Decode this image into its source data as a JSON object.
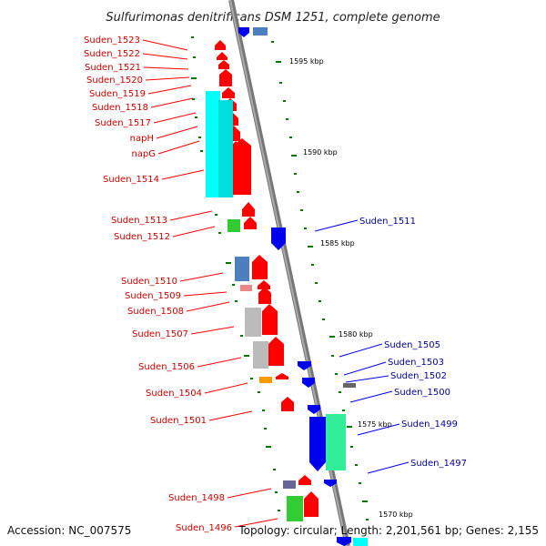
{
  "title": "Sulfurimonas denitrificans DSM 1251, complete genome",
  "footer": {
    "accession": "Accession: NC_007575",
    "summary": "Topology: circular; Length: 2,201,561 bp; Genes: 2,155"
  },
  "colors": {
    "backbone": "#888888",
    "forward": "#ff0000",
    "reverse": "#0000ee",
    "tick": "#007700",
    "label_forward": "#cc0000",
    "label_reverse": "#000099",
    "cds_cyan": "#00ffff",
    "cds_green": "#33cc33",
    "cds_steel": "#4d7fbf",
    "cds_pink": "#ee8888",
    "cds_grey": "#bbbbbb",
    "cds_orange": "#ff9900",
    "cds_purple": "#666699",
    "cds_mint": "#33ee99"
  },
  "kbp_markers": [
    "1595 kbp",
    "1590 kbp",
    "1585 kbp",
    "1580 kbp",
    "1575 kbp",
    "1570 kbp"
  ],
  "left_labels": [
    "Suden_1523",
    "Suden_1522",
    "Suden_1521",
    "Suden_1520",
    "Suden_1519",
    "Suden_1518",
    "Suden_1517",
    "napH",
    "napG",
    "Suden_1514",
    "Suden_1513",
    "Suden_1512",
    "Suden_1510",
    "Suden_1509",
    "Suden_1508",
    "Suden_1507",
    "Suden_1506",
    "Suden_1504",
    "Suden_1501",
    "Suden_1498",
    "Suden_1496"
  ],
  "right_labels": [
    "Suden_1511",
    "Suden_1505",
    "Suden_1503",
    "Suden_1502",
    "Suden_1500",
    "Suden_1499",
    "Suden_1497"
  ]
}
